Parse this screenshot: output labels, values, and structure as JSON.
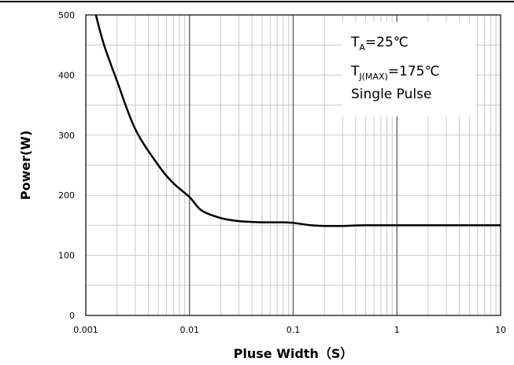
{
  "chart_data": {
    "type": "line",
    "xlabel": "Pluse Width（S）",
    "ylabel": "Power(W)",
    "xscale": "log",
    "xlim": [
      0.001,
      10
    ],
    "ylim": [
      0,
      500
    ],
    "x_ticks": [
      "0.001",
      "0.01",
      "0.1",
      "1",
      "10"
    ],
    "y_ticks": [
      "0",
      "100",
      "200",
      "300",
      "400",
      "500"
    ],
    "grid": true,
    "series": [
      {
        "x": [
          0.00125,
          0.0015,
          0.002,
          0.003,
          0.005,
          0.007,
          0.01,
          0.013,
          0.02,
          0.03,
          0.05,
          0.08,
          0.1,
          0.15,
          0.2,
          0.3,
          0.5,
          1,
          2,
          5,
          10
        ],
        "y": [
          500,
          450,
          390,
          310,
          250,
          220,
          197,
          175,
          162,
          157,
          155,
          155,
          154,
          150,
          149,
          149,
          150,
          150,
          150,
          150,
          150
        ]
      }
    ],
    "annotation": {
      "line1_main": "T",
      "line1_sub": "A",
      "line1_rest": "=25℃",
      "line2_main": "T",
      "line2_sub": "J(MAX)",
      "line2_rest": "=175℃",
      "line3": "Single Pulse"
    }
  }
}
